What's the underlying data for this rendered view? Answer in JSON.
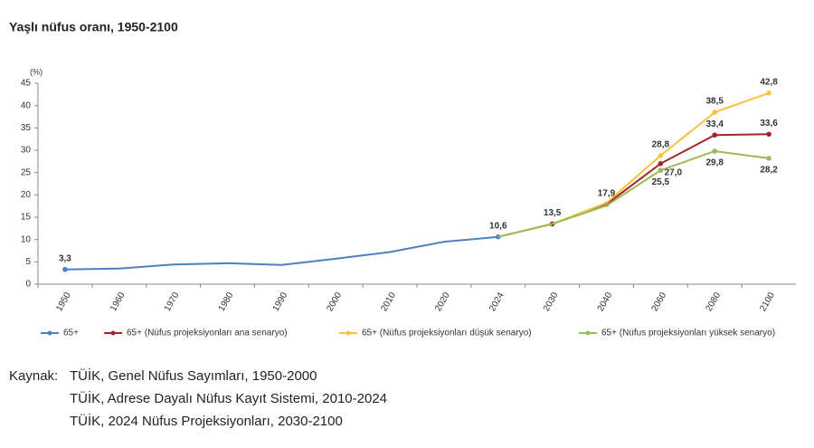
{
  "chart_data": {
    "type": "line",
    "title": "Yaşlı nüfus oranı, 1950-2100",
    "y_unit": "(%)",
    "categories": [
      "1950",
      "1960",
      "1970",
      "1980",
      "1990",
      "2000",
      "2010",
      "2020",
      "2024",
      "2030",
      "2040",
      "2060",
      "2080",
      "2100"
    ],
    "ylim": [
      0,
      45
    ],
    "yticks": [
      0,
      5,
      10,
      15,
      20,
      25,
      30,
      35,
      40,
      45
    ],
    "legend": "bottom",
    "series": [
      {
        "name": "65+",
        "color": "#4f81bd",
        "values": [
          3.3,
          3.5,
          4.4,
          4.7,
          4.3,
          5.7,
          7.2,
          9.5,
          10.6,
          null,
          null,
          null,
          null,
          null
        ],
        "value_labels": [
          "3,3",
          null,
          null,
          null,
          null,
          null,
          null,
          null,
          "10,6",
          null,
          null,
          null,
          null,
          null
        ]
      },
      {
        "name": "65+ (Nüfus projeksiyonları ana senaryo)",
        "color": "#a3242b",
        "values": [
          null,
          null,
          null,
          null,
          null,
          null,
          null,
          null,
          10.6,
          13.5,
          17.9,
          27.0,
          33.4,
          33.6
        ],
        "value_labels": [
          null,
          null,
          null,
          null,
          null,
          null,
          null,
          null,
          null,
          "13,5",
          "17,9",
          "27,0",
          "33,4",
          "33,6"
        ]
      },
      {
        "name": "65+ (Nüfus projeksiyonları düşük senaryo)",
        "color": "#f5c242",
        "values": [
          null,
          null,
          null,
          null,
          null,
          null,
          null,
          null,
          10.6,
          13.5,
          18.2,
          28.8,
          38.5,
          42.8
        ],
        "value_labels": [
          null,
          null,
          null,
          null,
          null,
          null,
          null,
          null,
          null,
          null,
          null,
          "28,8",
          "38,5",
          "42,8"
        ]
      },
      {
        "name": "65+ (Nüfus projeksiyonları yüksek senaryo)",
        "color": "#9bbb59",
        "values": [
          null,
          null,
          null,
          null,
          null,
          null,
          null,
          null,
          10.6,
          13.5,
          17.6,
          25.5,
          29.8,
          28.2
        ],
        "value_labels": [
          null,
          null,
          null,
          null,
          null,
          null,
          null,
          null,
          null,
          null,
          null,
          "25,5",
          "29,8",
          "28,2"
        ]
      }
    ]
  },
  "source": {
    "label": "Kaynak:",
    "lines": [
      "TÜİK, Genel Nüfus Sayımları, 1950-2000",
      "TÜİK, Adrese Dayalı Nüfus Kayıt Sistemi, 2010-2024",
      "TÜİK, 2024 Nüfus Projeksiyonları, 2030-2100"
    ]
  }
}
